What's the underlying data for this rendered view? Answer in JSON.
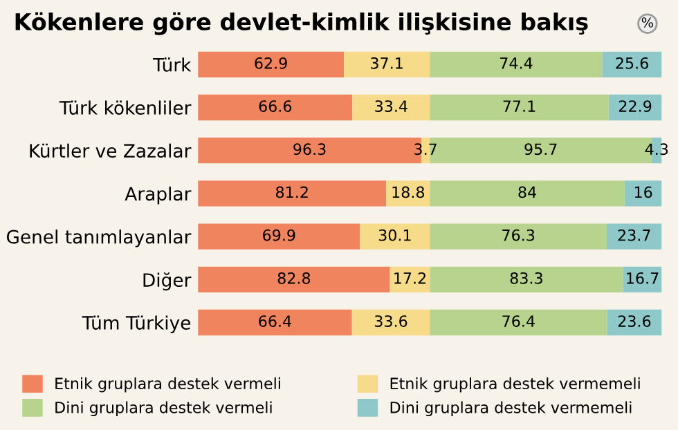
{
  "chart_data": {
    "type": "bar",
    "title": "Kökenlere göre devlet-kimlik ilişkisine bakış",
    "annotations": [
      "%"
    ],
    "orientation": "horizontal",
    "stacked": true,
    "data_labels": true,
    "legend": "bottom",
    "grid": false,
    "tick_labels": "y",
    "categories": [
      "Türk",
      "Türk kökenliler",
      "Kürtler ve Zazalar",
      "Araplar",
      "Genel tanımlayanlar",
      "Diğer",
      "Tüm Türkiye"
    ],
    "series": [
      {
        "name": "Etnik gruplara destek vermeli",
        "color": "#f0845e",
        "values": [
          62.9,
          66.6,
          96.3,
          81.2,
          69.9,
          82.8,
          66.4
        ]
      },
      {
        "name": "Etnik gruplara destek vermemeli",
        "color": "#f6dc8a",
        "values": [
          37.1,
          33.4,
          3.7,
          18.8,
          30.1,
          17.2,
          33.6
        ]
      },
      {
        "name": "Dini gruplara destek vermeli",
        "color": "#b8d38e",
        "values": [
          74.4,
          77.1,
          95.7,
          84,
          76.3,
          83.3,
          76.4
        ]
      },
      {
        "name": "Dini gruplara destek vermemeli",
        "color": "#8ec8c8",
        "values": [
          25.6,
          22.9,
          4.3,
          16,
          23.7,
          16.7,
          23.6
        ]
      }
    ]
  }
}
